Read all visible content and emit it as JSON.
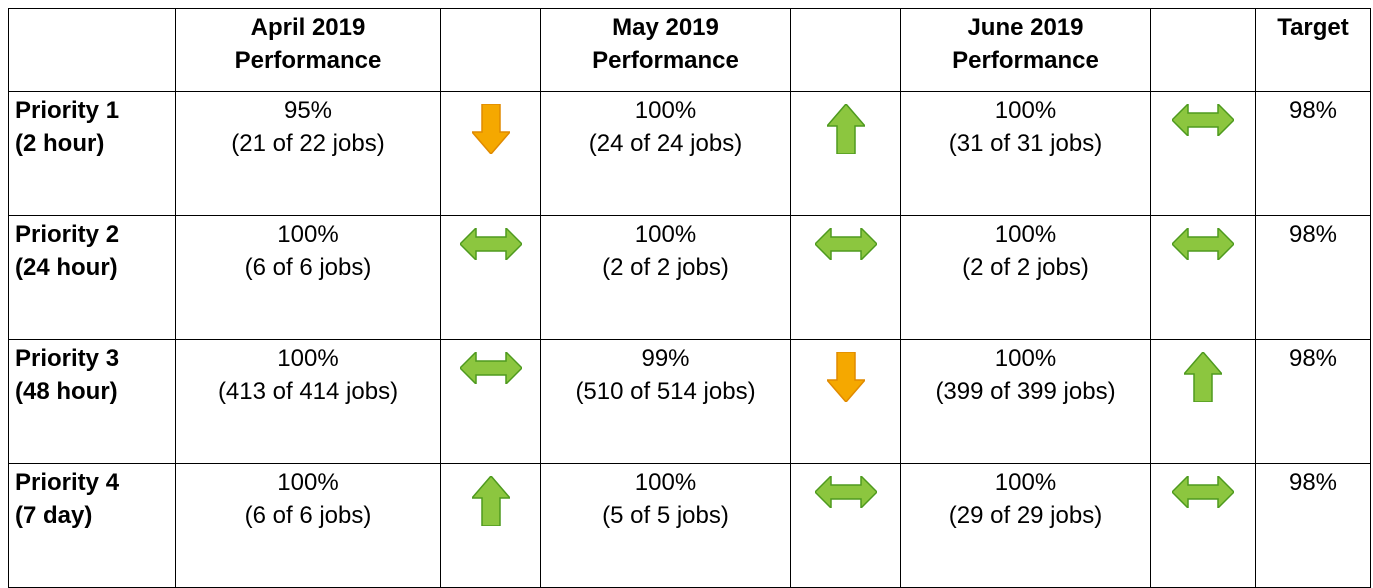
{
  "table": {
    "header": [
      "April 2019 Performance",
      "May 2019 Performance",
      "June 2019 Performance",
      "Target"
    ],
    "rows": [
      {
        "label": "Priority 1",
        "sublabel": "(2 hour)",
        "cells": [
          {
            "percent": "95%",
            "jobs": "(21 of 22 jobs)"
          },
          {
            "percent": "100%",
            "jobs": "(24 of 24 jobs)"
          },
          {
            "percent": "100%",
            "jobs": "(31 of 31 jobs)"
          }
        ],
        "target": "98%"
      },
      {
        "label": "Priority 2",
        "sublabel": "(24 hour)",
        "cells": [
          {
            "percent": "100%",
            "jobs": "(6 of 6 jobs)"
          },
          {
            "percent": "100%",
            "jobs": "(2 of 2 jobs)"
          },
          {
            "percent": "100%",
            "jobs": "(2 of 2 jobs)"
          }
        ],
        "target": "98%"
      },
      {
        "label": "Priority 3",
        "sublabel": "(48 hour)",
        "cells": [
          {
            "percent": "100%",
            "jobs": "(413 of 414 jobs)"
          },
          {
            "percent": "99%",
            "jobs": "(510 of 514 jobs)"
          },
          {
            "percent": "100%",
            "jobs": "(399 of 399 jobs)"
          }
        ],
        "target": "98%"
      },
      {
        "label": "Priority 4",
        "sublabel": "(7 day)",
        "cells": [
          {
            "percent": "100%",
            "jobs": "(6 of 6 jobs)"
          },
          {
            "percent": "100%",
            "jobs": "(5 of 5 jobs)"
          },
          {
            "percent": "100%",
            "jobs": "(29 of 29 jobs)"
          }
        ],
        "target": "98%"
      }
    ]
  }
}
